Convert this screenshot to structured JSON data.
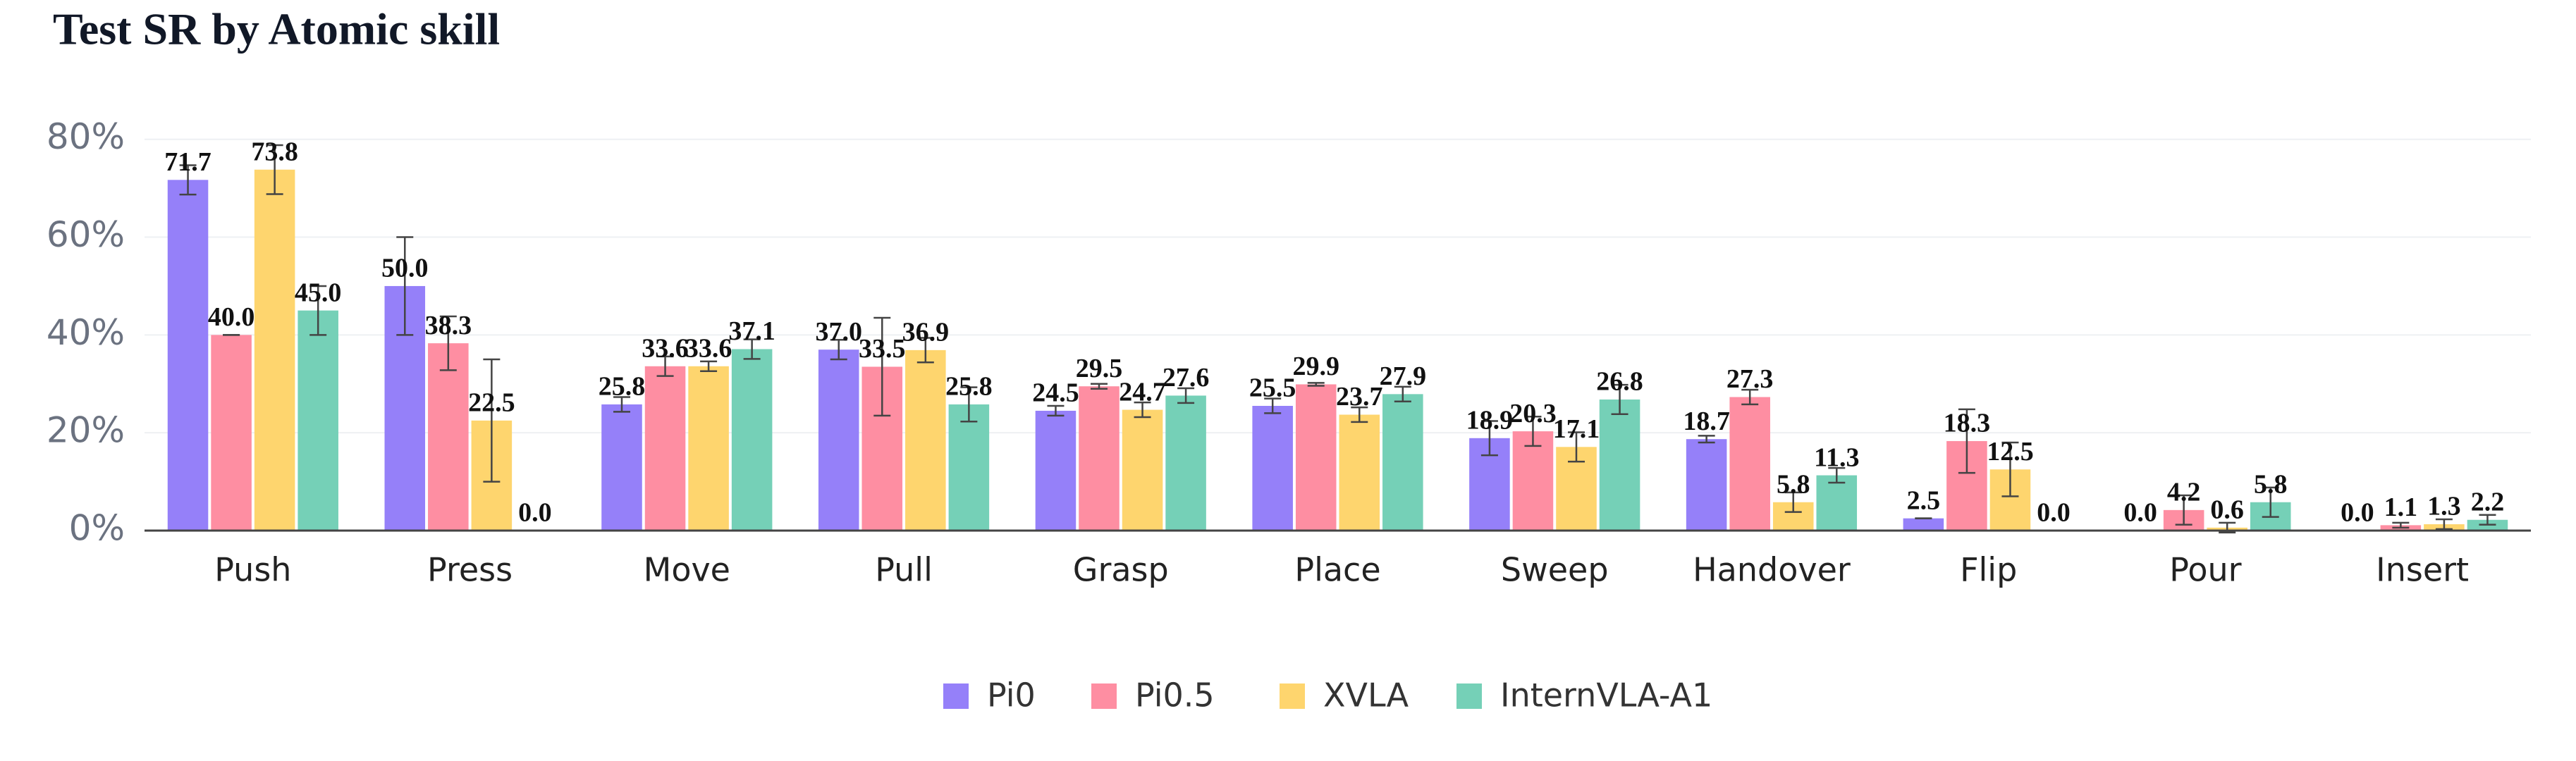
{
  "chart_data": {
    "type": "bar",
    "title": "Test SR by Atomic skill",
    "categories": [
      "Push",
      "Press",
      "Move",
      "Pull",
      "Grasp",
      "Place",
      "Sweep",
      "Handover",
      "Flip",
      "Pour",
      "Insert"
    ],
    "series": [
      {
        "name": "Pi0",
        "color": "#9580f9",
        "values": [
          71.7,
          50.0,
          25.8,
          37.0,
          24.5,
          25.5,
          18.9,
          18.7,
          2.5,
          0.0,
          0.0
        ],
        "value_labels": [
          "71.7",
          "50.0",
          "25.8",
          "37.0",
          "24.5",
          "25.5",
          "18.9",
          "18.7",
          "2.5",
          "0.0",
          "0.0"
        ],
        "errors": [
          3,
          10,
          1.5,
          2,
          1,
          1.5,
          3.5,
          0.7,
          0,
          0,
          0
        ]
      },
      {
        "name": "Pi0.5",
        "color": "#fe8ea2",
        "values": [
          40.0,
          38.3,
          33.6,
          33.5,
          29.5,
          29.9,
          20.3,
          27.3,
          18.3,
          4.2,
          1.1
        ],
        "value_labels": [
          "40.0",
          "38.3",
          "33.6",
          "33.5",
          "29.5",
          "29.9",
          "20.3",
          "27.3",
          "18.3",
          "4.2",
          "1.1"
        ],
        "errors": [
          0,
          5.5,
          2,
          10,
          0.5,
          0.3,
          3,
          1.5,
          6.5,
          3,
          0.5
        ]
      },
      {
        "name": "XVLA",
        "color": "#fed56e",
        "values": [
          73.8,
          22.5,
          33.6,
          36.9,
          24.7,
          23.7,
          17.1,
          5.8,
          12.5,
          0.6,
          1.3
        ],
        "value_labels": [
          "73.8",
          "22.5",
          "33.6",
          "36.9",
          "24.7",
          "23.7",
          "17.1",
          "5.8",
          "12.5",
          "0.6",
          "1.3"
        ],
        "errors": [
          5,
          12.5,
          1,
          2.5,
          1.5,
          1.5,
          3,
          2,
          5.5,
          1,
          1
        ]
      },
      {
        "name": "InternVLA-A1",
        "color": "#75d0b7",
        "values": [
          45.0,
          0.0,
          37.1,
          25.8,
          27.6,
          27.9,
          26.8,
          11.3,
          0.0,
          5.8,
          2.2
        ],
        "value_labels": [
          "45.0",
          "0.0",
          "37.1",
          "25.8",
          "27.6",
          "27.9",
          "26.8",
          "11.3",
          "0.0",
          "5.8",
          "2.2"
        ],
        "errors": [
          5,
          0,
          2,
          3.5,
          1.5,
          1.5,
          3,
          1.5,
          0,
          3,
          1
        ]
      }
    ],
    "ylim": [
      0,
      85
    ],
    "yticks": [
      {
        "value": 0,
        "label": "0%"
      },
      {
        "value": 20,
        "label": "20%"
      },
      {
        "value": 40,
        "label": "40%"
      },
      {
        "value": 60,
        "label": "60%"
      },
      {
        "value": 80,
        "label": "80%"
      }
    ],
    "grid": true,
    "legend": "bottom"
  }
}
